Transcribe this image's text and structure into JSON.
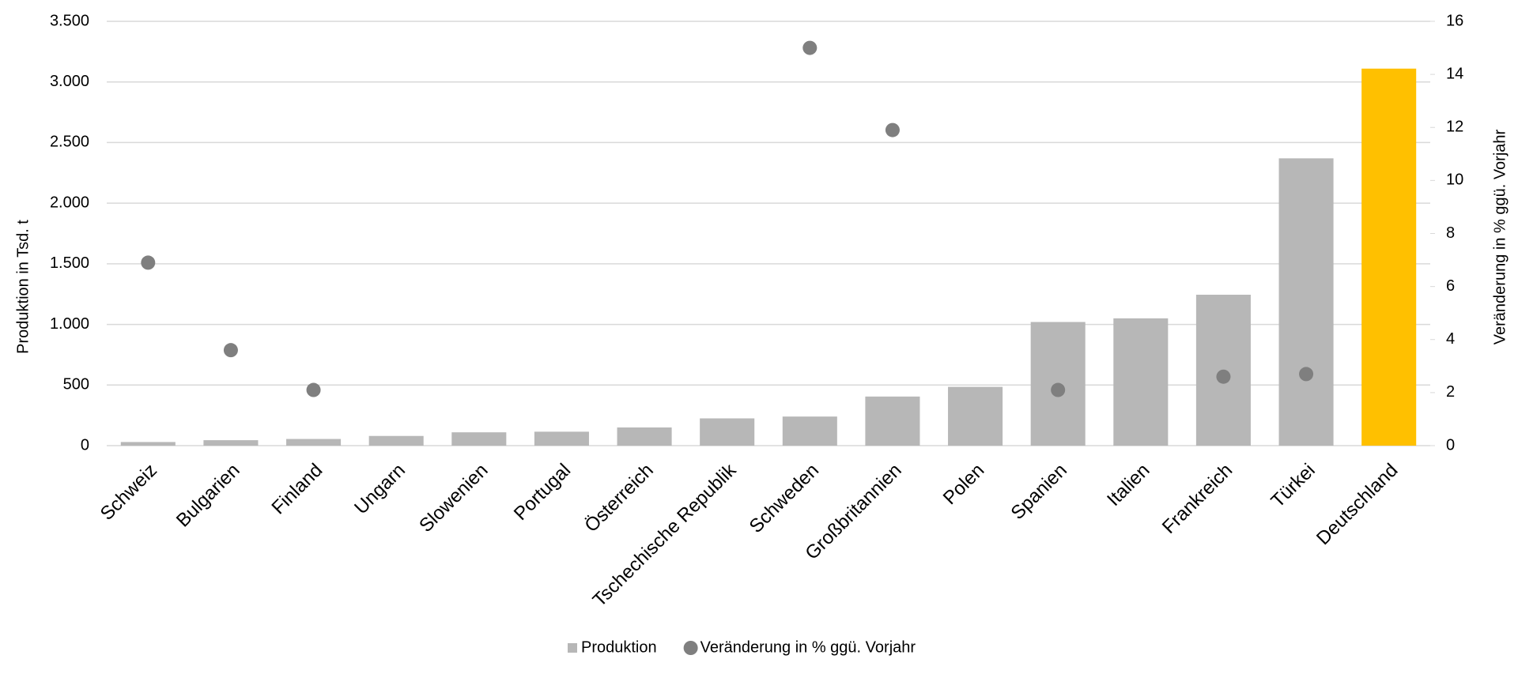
{
  "chart_data": {
    "type": "bar",
    "categories": [
      "Schweiz",
      "Bulgarien",
      "Finland",
      "Ungarn",
      "Slowenien",
      "Portugal",
      "Österreich",
      "Tschechische Republik",
      "Schweden",
      "Großbritannien",
      "Polen",
      "Spanien",
      "Italien",
      "Frankreich",
      "Türkei",
      "Deutschland"
    ],
    "series": [
      {
        "name": "Produktion",
        "type": "bar",
        "color": "#b7b7b7",
        "colors": [
          "#b7b7b7",
          "#b7b7b7",
          "#b7b7b7",
          "#b7b7b7",
          "#b7b7b7",
          "#b7b7b7",
          "#b7b7b7",
          "#b7b7b7",
          "#b7b7b7",
          "#b7b7b7",
          "#b7b7b7",
          "#b7b7b7",
          "#b7b7b7",
          "#b7b7b7",
          "#b7b7b7",
          "#ffc000"
        ],
        "values": [
          30,
          45,
          55,
          80,
          110,
          115,
          150,
          225,
          240,
          405,
          485,
          1020,
          1050,
          1245,
          2370,
          3110
        ]
      },
      {
        "name": "Veränderung in % ggü. Vorjahr",
        "type": "scatter",
        "axis": "y2",
        "color": "#7f7f7f",
        "values": [
          6.9,
          3.6,
          2.1,
          null,
          null,
          null,
          null,
          null,
          15.0,
          11.9,
          null,
          2.1,
          null,
          2.6,
          2.7,
          null
        ]
      }
    ],
    "ylabel": "Produktion in Tsd. t",
    "y2label": "Veränderung in % ggü. Vorjahr",
    "ylim": [
      0,
      3500
    ],
    "yticks": [
      0,
      500,
      {
        "value": 1000,
        "label": "1.000"
      },
      {
        "value": 1500,
        "label": "1.500"
      },
      {
        "value": 2000,
        "label": "2.000"
      },
      {
        "value": 2500,
        "label": "2.500"
      },
      {
        "value": 3000,
        "label": "3.000"
      },
      {
        "value": 3500,
        "label": "3.500"
      }
    ],
    "y2lim": [
      0,
      16
    ],
    "y2ticks": [
      0,
      2,
      4,
      6,
      8,
      10,
      12,
      14,
      16
    ],
    "grid": true,
    "legend": "bottom"
  }
}
